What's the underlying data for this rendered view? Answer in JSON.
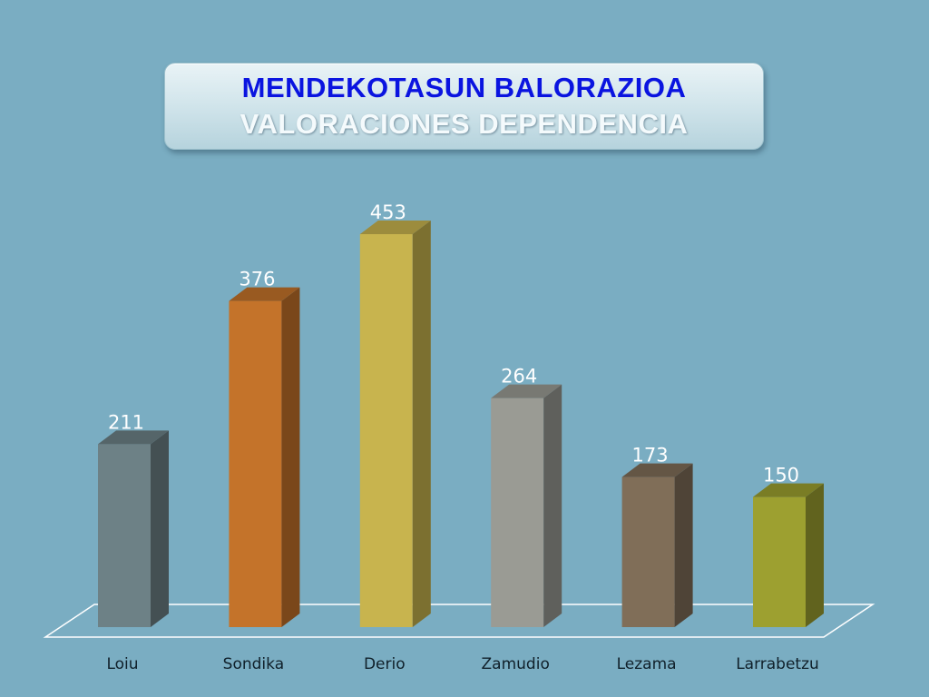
{
  "title": {
    "line1": "MENDEKOTASUN BALORAZIOA",
    "line2": "VALORACIONES DEPENDENCIA"
  },
  "chart_data": {
    "type": "bar",
    "style": "3d",
    "categories": [
      "Loiu",
      "Sondika",
      "Derio",
      "Zamudio",
      "Lezama",
      "Larrabetzu"
    ],
    "values": [
      211,
      376,
      453,
      264,
      173,
      150
    ],
    "colors": [
      "#6d8186",
      "#c4732a",
      "#c8b44e",
      "#9a9b94",
      "#806e58",
      "#9da030"
    ],
    "data_labels": true,
    "grid": false,
    "legend": "none",
    "ylim": [
      0,
      460
    ]
  }
}
